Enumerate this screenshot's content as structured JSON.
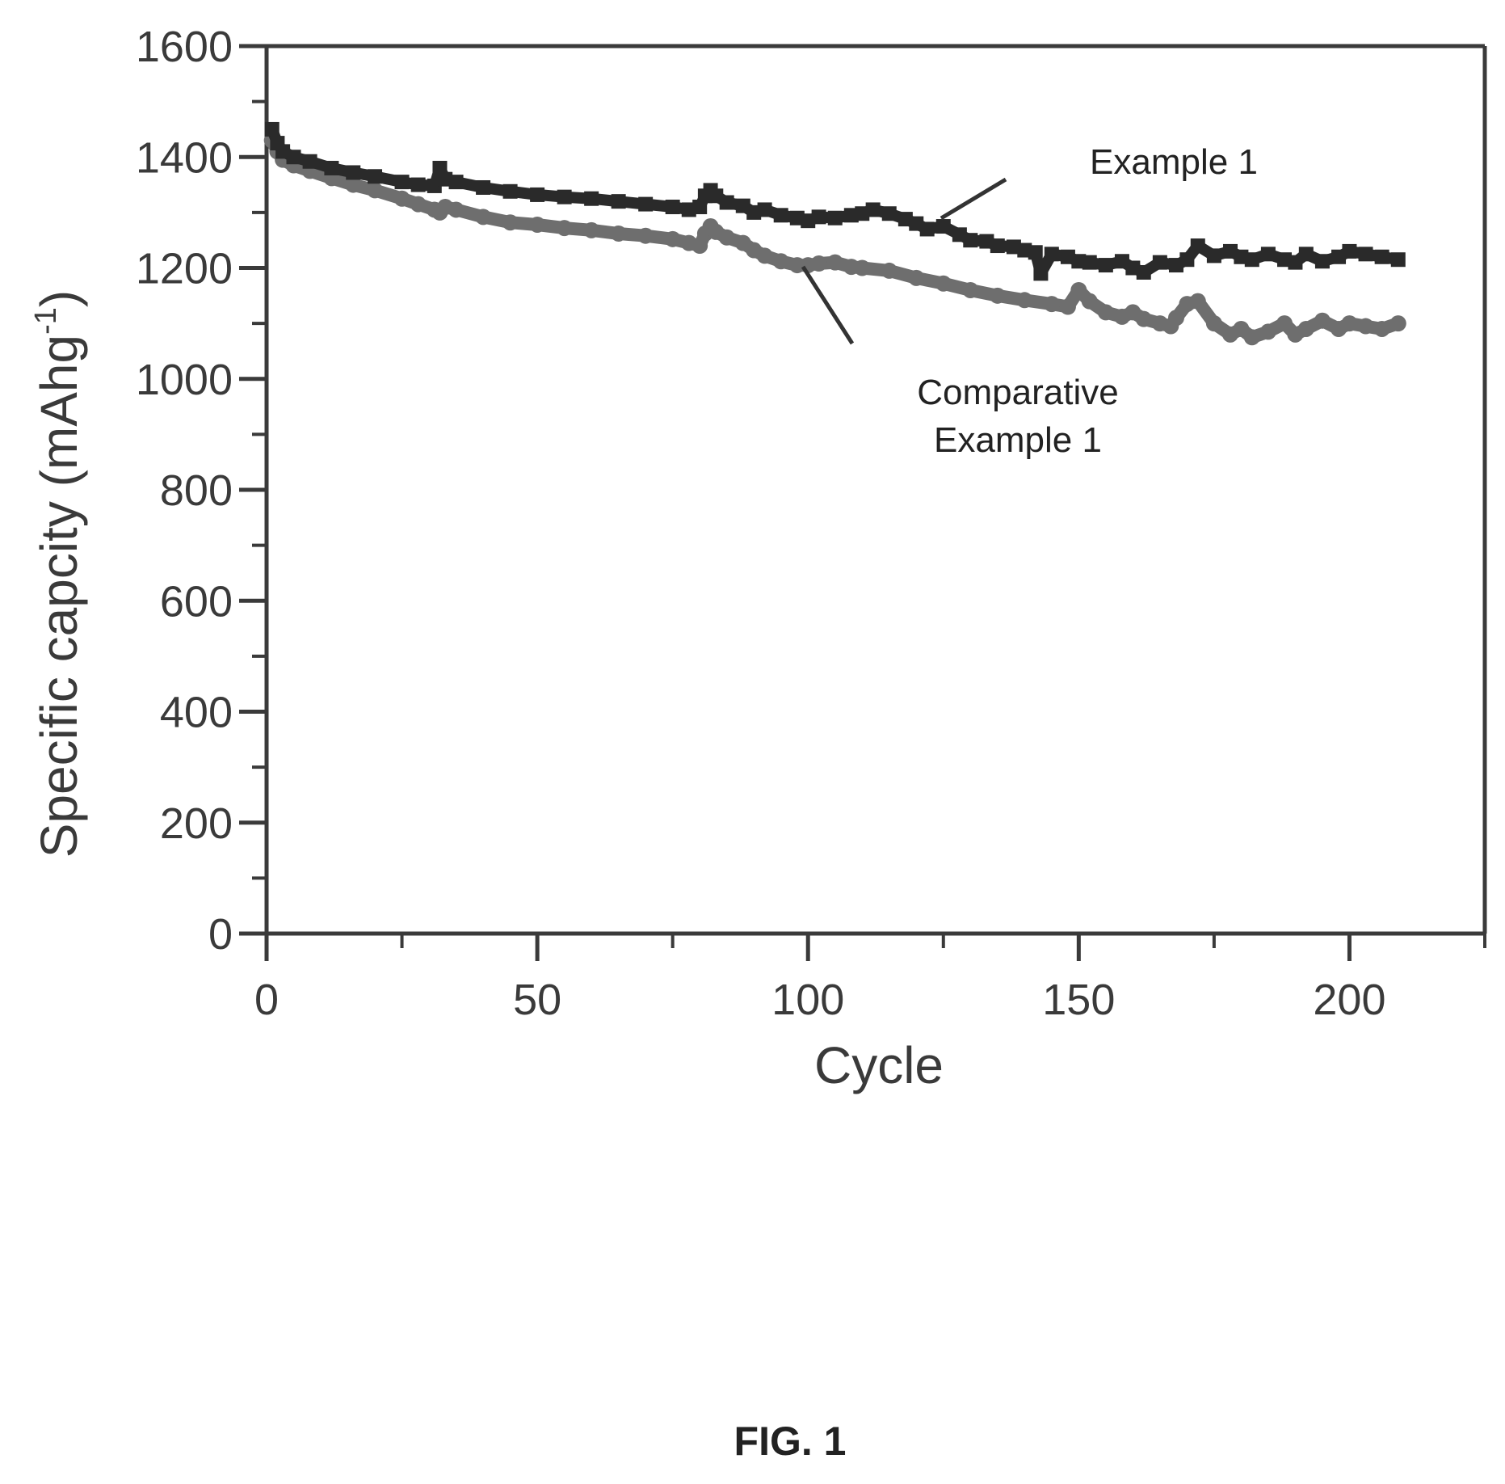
{
  "figure": {
    "caption": "FIG. 1"
  },
  "colors": {
    "axis": "#3a3a3a",
    "example_1": "#2a2a2a",
    "comparative_example_1": "#6e6e6e"
  },
  "chart_data": {
    "type": "line",
    "title": "",
    "xlabel": "Cycle",
    "ylabel": "Specific capcity (mAhg",
    "ylabel_superscript": "-1",
    "ylabel_close": ")",
    "xlim": [
      0,
      225
    ],
    "ylim": [
      0,
      1600
    ],
    "xticks": [
      0,
      50,
      100,
      150,
      200
    ],
    "yticks": [
      0,
      200,
      400,
      600,
      800,
      1000,
      1200,
      1400,
      1600
    ],
    "xtick_labels": [
      "0",
      "50",
      "100",
      "150",
      "200"
    ],
    "ytick_labels": [
      "0",
      "200",
      "400",
      "600",
      "800",
      "1000",
      "1200",
      "1400",
      "1600"
    ],
    "grid": false,
    "legend": "none",
    "annotations": [
      {
        "lines": [
          "Example 1"
        ],
        "series": "Example 1"
      },
      {
        "lines": [
          "Comparative",
          "Example 1"
        ],
        "series": "Comparative Example 1"
      }
    ],
    "series": [
      {
        "name": "Example 1",
        "marker": "square",
        "x": [
          1,
          2,
          3,
          5,
          8,
          12,
          16,
          20,
          25,
          28,
          31,
          32,
          33,
          35,
          40,
          45,
          50,
          55,
          60,
          65,
          70,
          75,
          78,
          80,
          81,
          82,
          83,
          85,
          88,
          90,
          92,
          95,
          98,
          100,
          102,
          105,
          108,
          110,
          112,
          115,
          118,
          120,
          122,
          125,
          128,
          130,
          133,
          135,
          138,
          140,
          142,
          143,
          145,
          148,
          150,
          152,
          155,
          158,
          160,
          162,
          165,
          168,
          170,
          172,
          175,
          178,
          180,
          182,
          185,
          188,
          190,
          192,
          195,
          198,
          200,
          203,
          206,
          209
        ],
        "y": [
          1450,
          1425,
          1410,
          1400,
          1392,
          1380,
          1372,
          1365,
          1355,
          1350,
          1348,
          1380,
          1360,
          1355,
          1345,
          1338,
          1332,
          1328,
          1325,
          1320,
          1315,
          1310,
          1305,
          1310,
          1330,
          1340,
          1330,
          1318,
          1312,
          1300,
          1305,
          1295,
          1290,
          1285,
          1292,
          1290,
          1295,
          1298,
          1305,
          1298,
          1288,
          1280,
          1270,
          1275,
          1260,
          1250,
          1248,
          1240,
          1238,
          1232,
          1228,
          1190,
          1225,
          1220,
          1212,
          1210,
          1205,
          1212,
          1200,
          1192,
          1210,
          1205,
          1215,
          1240,
          1222,
          1230,
          1220,
          1215,
          1225,
          1215,
          1210,
          1225,
          1212,
          1220,
          1230,
          1225,
          1220,
          1215
        ]
      },
      {
        "name": "Comparative Example 1",
        "marker": "circle",
        "x": [
          1,
          2,
          3,
          5,
          8,
          12,
          16,
          20,
          25,
          28,
          31,
          32,
          33,
          35,
          40,
          45,
          50,
          55,
          60,
          65,
          70,
          75,
          78,
          80,
          81,
          82,
          83,
          85,
          88,
          90,
          92,
          95,
          98,
          100,
          102,
          105,
          108,
          110,
          115,
          120,
          125,
          130,
          135,
          140,
          145,
          148,
          150,
          152,
          155,
          158,
          160,
          162,
          165,
          167,
          168,
          170,
          172,
          175,
          178,
          180,
          182,
          185,
          188,
          190,
          192,
          195,
          198,
          200,
          203,
          206,
          209
        ],
        "y": [
          1430,
          1410,
          1395,
          1385,
          1375,
          1362,
          1350,
          1340,
          1325,
          1315,
          1305,
          1300,
          1310,
          1305,
          1292,
          1282,
          1278,
          1272,
          1268,
          1262,
          1258,
          1252,
          1245,
          1240,
          1262,
          1275,
          1265,
          1255,
          1245,
          1232,
          1222,
          1212,
          1205,
          1205,
          1208,
          1210,
          1202,
          1200,
          1195,
          1182,
          1172,
          1160,
          1150,
          1142,
          1135,
          1130,
          1160,
          1140,
          1120,
          1112,
          1120,
          1108,
          1100,
          1095,
          1110,
          1135,
          1140,
          1100,
          1080,
          1090,
          1075,
          1085,
          1100,
          1080,
          1090,
          1105,
          1090,
          1100,
          1095,
          1090,
          1100
        ]
      }
    ]
  }
}
